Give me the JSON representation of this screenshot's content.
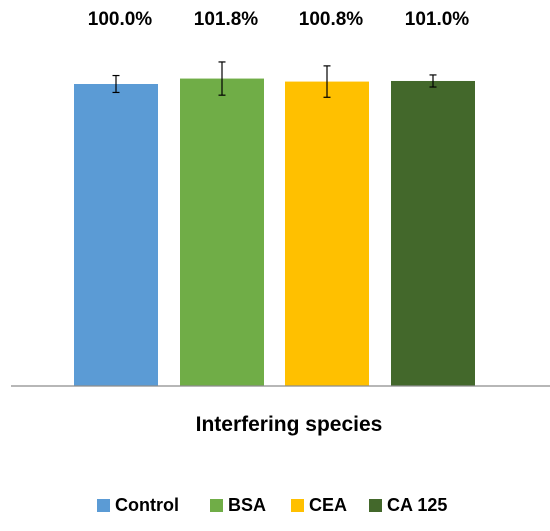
{
  "chart_data": {
    "type": "bar",
    "title": "",
    "xlabel": "Interfering species",
    "ylabel": "",
    "ylim": [
      0,
      115
    ],
    "grid": false,
    "legend": "bottom",
    "categories": [
      "Control",
      "BSA",
      "CEA",
      "CA 125"
    ],
    "values": [
      100.0,
      101.8,
      100.8,
      101.0
    ],
    "errors": [
      2.8,
      5.5,
      5.2,
      2.0
    ],
    "data_labels": [
      "100.0%",
      "101.8%",
      "100.8%",
      "101.0%"
    ],
    "colors": [
      "#5b9bd5",
      "#70ad47",
      "#ffc000",
      "#43682b"
    ],
    "legend_entries": [
      "Control",
      "BSA",
      "CEA",
      "CA 125"
    ]
  }
}
